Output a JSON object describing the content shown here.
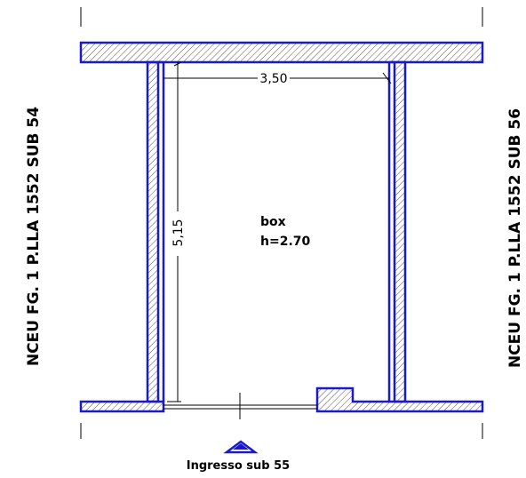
{
  "plan": {
    "room_name": "box",
    "room_height": "h=2.70",
    "dim_width": "3,50",
    "dim_depth": "5,15",
    "left_neighbor": "NCEU FG. 1 P.LLA 1552 SUB 54",
    "right_neighbor": "NCEU FG. 1 P.LLA 1552 SUB 56",
    "entrance_label": "Ingresso sub 55"
  },
  "colors": {
    "wall_outline": "#1a1acc",
    "hatch": "#555555",
    "lines": "#000000"
  }
}
